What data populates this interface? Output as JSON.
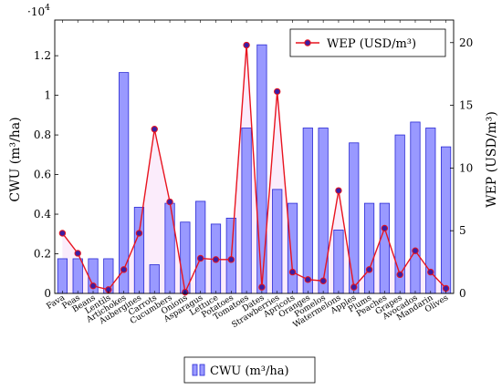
{
  "chart_data": {
    "type": "bar+line",
    "categories": [
      "Fava",
      "Peas",
      "Beans",
      "Lentils",
      "Artichokes",
      "Aubergines",
      "Carrots",
      "Cucumbers",
      "Onions",
      "Asparagus",
      "Lettuce",
      "Potatoes",
      "Tomatoes",
      "Dates",
      "Strawberries",
      "Apricots",
      "Oranges",
      "Pomelos",
      "Watermelons",
      "Apples",
      "Plums",
      "Peaches",
      "Grapes",
      "Avocados",
      "Mandarin",
      "Olives"
    ],
    "series": [
      {
        "name": "CWU (m³/ha)",
        "kind": "bar",
        "axis": "left",
        "values": [
          1750,
          1750,
          1750,
          1750,
          11150,
          4350,
          1450,
          4550,
          3600,
          4650,
          3500,
          3800,
          8350,
          12550,
          5250,
          4550,
          8350,
          8350,
          3200,
          7600,
          4550,
          4550,
          8000,
          8650,
          8350,
          7400
        ]
      },
      {
        "name": "WEP (USD/m³)",
        "kind": "line",
        "axis": "right",
        "values": [
          4.8,
          3.2,
          0.6,
          0.3,
          1.9,
          4.8,
          13.1,
          7.3,
          0.1,
          2.8,
          2.7,
          2.7,
          19.8,
          0.5,
          16.1,
          1.7,
          1.1,
          1.0,
          8.2,
          0.5,
          1.9,
          5.2,
          1.5,
          3.4,
          1.7,
          0.4
        ]
      }
    ],
    "left_axis": {
      "label": "CWU (m³/ha)",
      "range": [
        0,
        13800
      ],
      "ticks": [
        0,
        2000,
        4000,
        6000,
        8000,
        10000,
        12000
      ],
      "tick_labels": [
        "0",
        "0.2",
        "0.4",
        "0.6",
        "0.8",
        "1",
        "1.2"
      ],
      "multiplier_label": "·10",
      "multiplier_exponent": "4"
    },
    "right_axis": {
      "label": "WEP (USD/m³)",
      "range": [
        0,
        21.8
      ],
      "ticks": [
        0,
        5,
        10,
        15,
        20
      ],
      "tick_labels": [
        "0",
        "5",
        "10",
        "15",
        "20"
      ]
    },
    "legend_line": {
      "label": "WEP (USD/m³)",
      "placement": "top-right"
    },
    "legend_bar": {
      "label": "CWU (m³/ha)",
      "placement": "bottom-center"
    },
    "colors": {
      "bar_fill": "#9999ff",
      "bar_stroke": "#2a2ad4",
      "line": "#e8141f",
      "marker_fill": "#3b1fa3",
      "area_fill": "#f3c9f3"
    },
    "grid": false
  }
}
